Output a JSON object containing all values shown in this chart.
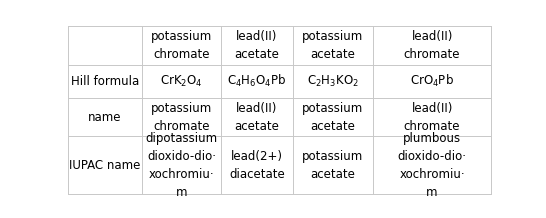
{
  "col_headers": [
    "potassium\nchromate",
    "lead(II)\nacetate",
    "potassium\nacetate",
    "lead(II)\nchromate"
  ],
  "row_headers": [
    "Hill formula",
    "name",
    "IUPAC name"
  ],
  "hill_formulas": [
    [
      "CrK",
      "2",
      "O",
      "4",
      ""
    ],
    [
      "C",
      "4",
      "H",
      "6",
      "O",
      "4",
      "Pb"
    ],
    [
      "C",
      "2",
      "H",
      "3",
      "KO",
      "2",
      ""
    ],
    [
      "CrO",
      "4",
      "Pb"
    ]
  ],
  "hill_strings": [
    "CrK$_2$O$_4$",
    "C$_4$H$_6$O$_4$Pb",
    "C$_2$H$_3$KO$_2$",
    "CrO$_4$Pb"
  ],
  "name_cells": [
    [
      "potassium\nchromate",
      "lead(II)\nacetate",
      "potassium\nacetate",
      "lead(II)\nchromate"
    ]
  ],
  "iupac_cells": [
    "dipotassium\ndioxido-dio·\nxochromiu·\nm",
    "lead(2+)\ndiacetate",
    "potassium\nacetate",
    "plumbous\ndioxido-dio·\nxochromiu·\nm"
  ],
  "background_color": "#ffffff",
  "line_color": "#c8c8c8",
  "text_color": "#000000",
  "font_size": 8.5
}
